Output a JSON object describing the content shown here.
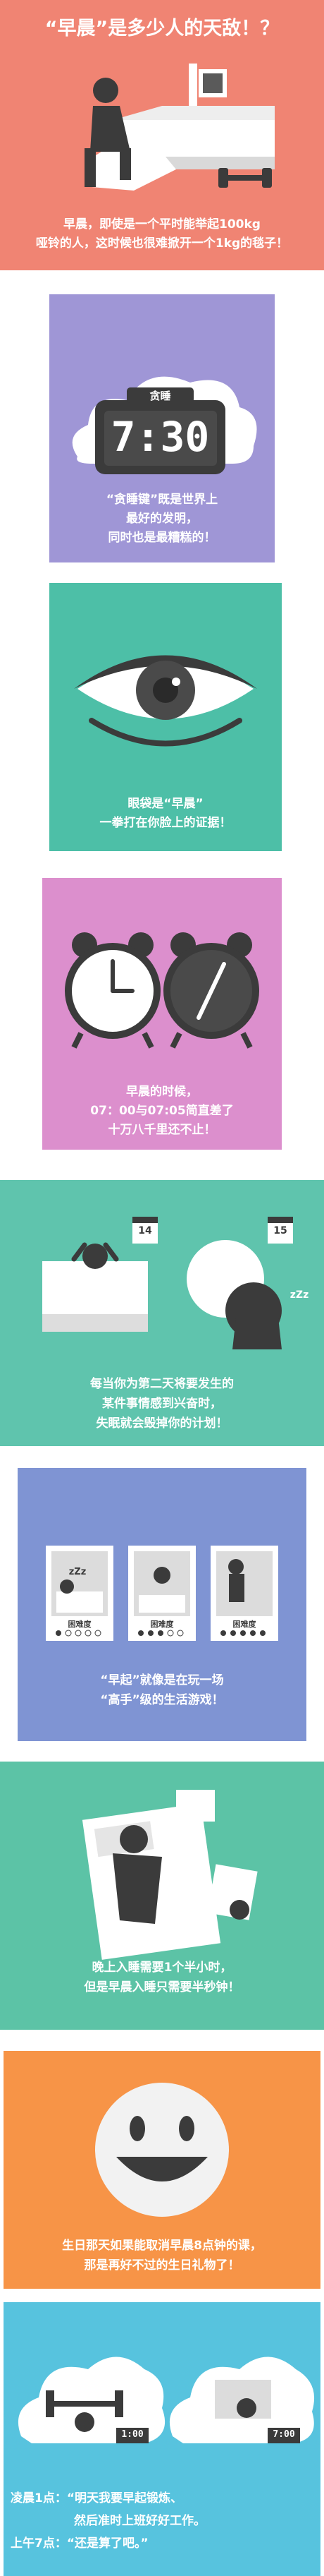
{
  "colors": {
    "red": "#f08473",
    "purple": "#9f96d6",
    "teal": "#4dbfa7",
    "pink": "#dc8fcd",
    "green": "#5fc4ad",
    "blue": "#7f94d3",
    "green2": "#5cc3a6",
    "orange": "#f79447",
    "sky": "#57c3de",
    "dark": "#3b3b3b"
  },
  "s1": {
    "title": "“早晨”是多少人的天敌！？",
    "line1": "早晨，即使是一个平时能举起100kg",
    "line2": "哑铃的人，这时候也很难掀开一个1kg的毯子！"
  },
  "s2": {
    "clock_label": "贪睡",
    "clock_time": "7:30",
    "line1": "“贪睡键”既是世界上",
    "line2": "最好的发明，",
    "line3": "同时也是最糟糕的！"
  },
  "s3": {
    "line1": "眼袋是“早晨”",
    "line2": "一拳打在你脸上的证据！"
  },
  "s4": {
    "line1": "早晨的时候，",
    "line2": "07：00与07:05简直差了",
    "line3": "十万八千里还不止！"
  },
  "s5": {
    "cal1": "14",
    "cal2": "15",
    "zzz": "zZz",
    "line1": "每当你为第二天将要发生的",
    "line2": "某件事情感到兴奋时，",
    "line3": "失眠就会毁掉你的计划！"
  },
  "s6": {
    "cards": [
      {
        "label": "困难度",
        "zzz": "zZz"
      },
      {
        "label": "困难度"
      },
      {
        "label": "困难度"
      }
    ],
    "line1": "“早起”就像是在玩一场",
    "line2": "“高手”级的生活游戏！"
  },
  "s7": {
    "line1": "晚上入睡需要1个半小时，",
    "line2": "但是早晨入睡只需要半秒钟！"
  },
  "s8": {
    "line1": "生日那天如果能取消早晨8点钟的课，",
    "line2": "那是再好不过的生日礼物了！"
  },
  "s9": {
    "time1": "1:00",
    "time2": "7:00",
    "line1": "凌晨1点：“明天我要早起锻炼、",
    "line2": "然后准时上班好好工作。",
    "line3": "上午7点：“还是算了吧。”"
  }
}
